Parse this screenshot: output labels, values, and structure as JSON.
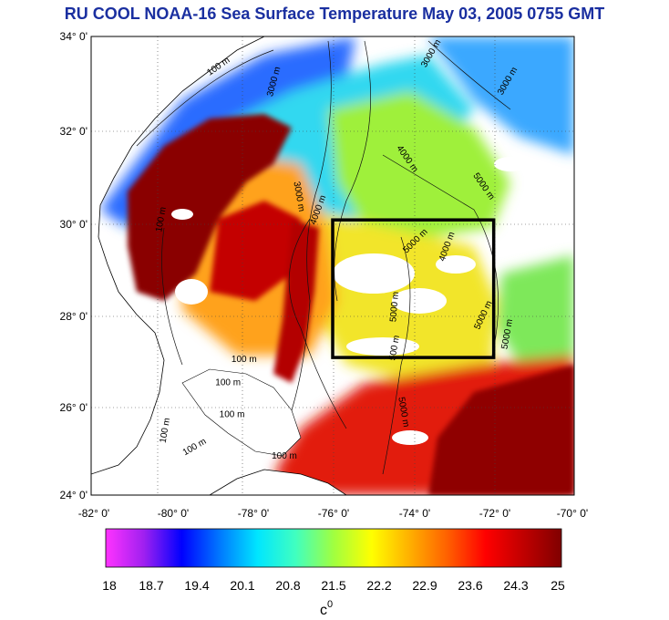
{
  "title": "RU COOL  NOAA-16 Sea Surface Temperature May 03, 2005 0755 GMT",
  "map": {
    "lat_labels": [
      "34° 0'",
      "32° 0'",
      "30° 0'",
      "28° 0'",
      "26° 0'",
      "24° 0'"
    ],
    "lon_labels": [
      "-82° 0'",
      "-80° 0'",
      "-78° 0'",
      "-76° 0'",
      "-74° 0'",
      "-72° 0'",
      "-70° 0'"
    ],
    "lat_range": [
      24,
      34
    ],
    "lon_range": [
      -82,
      -70
    ],
    "study_box": {
      "lon": [
        -76,
        -72
      ],
      "lat": [
        27,
        30
      ]
    },
    "contour_labels": [
      {
        "text": "100 m",
        "lon": -78.8,
        "lat": 33.3,
        "rot": -35
      },
      {
        "text": "3000 m",
        "lon": -77.4,
        "lat": 33.0,
        "rot": -75
      },
      {
        "text": "3000 m",
        "lon": -73.5,
        "lat": 33.6,
        "rot": -60
      },
      {
        "text": "3000 m",
        "lon": -71.6,
        "lat": 33.0,
        "rot": -60
      },
      {
        "text": "4000 m",
        "lon": -74.2,
        "lat": 31.3,
        "rot": 55
      },
      {
        "text": "5000 m",
        "lon": -72.3,
        "lat": 30.7,
        "rot": 55
      },
      {
        "text": "3000 m",
        "lon": -76.9,
        "lat": 30.5,
        "rot": 80
      },
      {
        "text": "100 m",
        "lon": -80.2,
        "lat": 30.0,
        "rot": -80
      },
      {
        "text": "4000 m",
        "lon": -76.3,
        "lat": 30.2,
        "rot": -70
      },
      {
        "text": "5000 m",
        "lon": -73.9,
        "lat": 29.5,
        "rot": -45
      },
      {
        "text": "4000 m",
        "lon": -73.1,
        "lat": 29.4,
        "rot": -70
      },
      {
        "text": "5000 m",
        "lon": -74.4,
        "lat": 28.1,
        "rot": -85
      },
      {
        "text": "5000 m",
        "lon": -72.2,
        "lat": 27.9,
        "rot": -65
      },
      {
        "text": "5000 m",
        "lon": -71.6,
        "lat": 27.5,
        "rot": -80
      },
      {
        "text": "500 m",
        "lon": -74.4,
        "lat": 27.2,
        "rot": -80
      },
      {
        "text": "100 m",
        "lon": -78.2,
        "lat": 26.9,
        "rot": 0
      },
      {
        "text": "100 m",
        "lon": -78.6,
        "lat": 26.4,
        "rot": 0
      },
      {
        "text": "100 m",
        "lon": -78.5,
        "lat": 25.7,
        "rot": 0
      },
      {
        "text": "100 m",
        "lon": -80.1,
        "lat": 25.4,
        "rot": -80
      },
      {
        "text": "100 m",
        "lon": -79.4,
        "lat": 25.0,
        "rot": -30
      },
      {
        "text": "5000 m",
        "lon": -74.3,
        "lat": 25.8,
        "rot": 80
      },
      {
        "text": "100 m",
        "lon": -77.2,
        "lat": 24.8,
        "rot": 0
      }
    ]
  },
  "colorbar": {
    "tick_labels": [
      "18",
      "18.7",
      "19.4",
      "20.1",
      "20.8",
      "21.5",
      "22.2",
      "22.9",
      "23.6",
      "24.3",
      "25"
    ],
    "unit_label": "c",
    "unit_superscript": "0",
    "colors": [
      "#ff33ff",
      "#a020f0",
      "#0000ff",
      "#0078ff",
      "#00e6ff",
      "#40ffc0",
      "#a0ff40",
      "#ffff00",
      "#ffb000",
      "#ff6000",
      "#ff0000",
      "#c00000",
      "#800000"
    ]
  }
}
